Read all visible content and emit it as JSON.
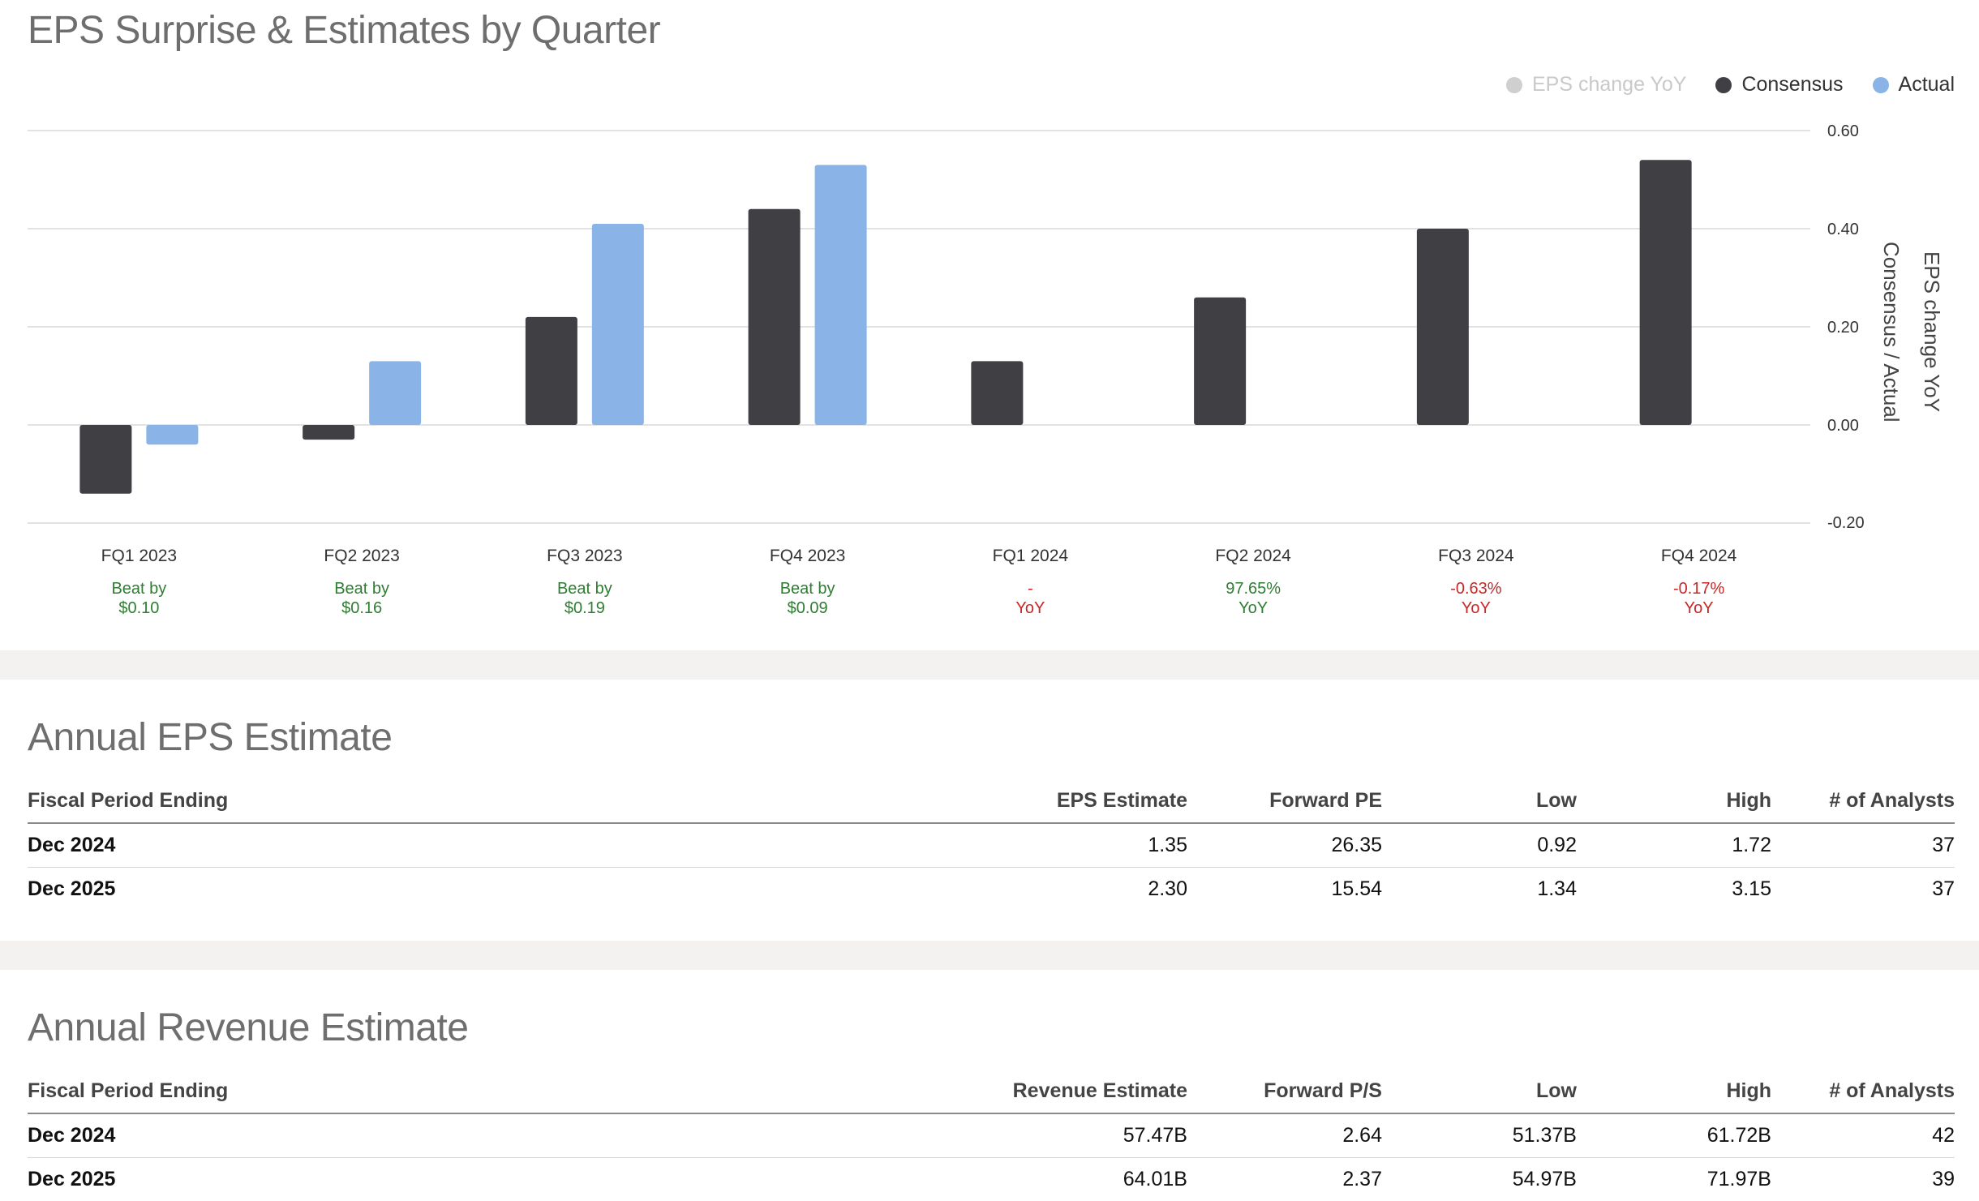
{
  "chart": {
    "title": "EPS Surprise & Estimates by Quarter",
    "legend": [
      {
        "label": "EPS change YoY",
        "color": "#cfcfcf",
        "state": "dim"
      },
      {
        "label": "Consensus",
        "color": "#3f3f44",
        "state": "on"
      },
      {
        "label": "Actual",
        "color": "#8ab4e8",
        "state": "on"
      }
    ],
    "right_axis_titles": [
      "Consensus / Actual",
      "EPS change YoY"
    ],
    "y_ticks": [
      "0.60",
      "0.40",
      "0.20",
      "0.00",
      "-0.20"
    ],
    "quarters": [
      {
        "label": "FQ1 2023",
        "note_line1": "Beat by",
        "note_line2": "$0.10",
        "note_tone": "pos"
      },
      {
        "label": "FQ2 2023",
        "note_line1": "Beat by",
        "note_line2": "$0.16",
        "note_tone": "pos"
      },
      {
        "label": "FQ3 2023",
        "note_line1": "Beat by",
        "note_line2": "$0.19",
        "note_tone": "pos"
      },
      {
        "label": "FQ4 2023",
        "note_line1": "Beat by",
        "note_line2": "$0.09",
        "note_tone": "pos"
      },
      {
        "label": "FQ1 2024",
        "note_line1": "-",
        "note_line2": "YoY",
        "note_tone": "neg"
      },
      {
        "label": "FQ2 2024",
        "note_line1": "97.65%",
        "note_line2": "YoY",
        "note_tone": "pos"
      },
      {
        "label": "FQ3 2024",
        "note_line1": "-0.63%",
        "note_line2": "YoY",
        "note_tone": "neg"
      },
      {
        "label": "FQ4 2024",
        "note_line1": "-0.17%",
        "note_line2": "YoY",
        "note_tone": "neg"
      }
    ]
  },
  "chart_data": {
    "type": "bar",
    "title": "EPS Surprise & Estimates by Quarter",
    "categories": [
      "FQ1 2023",
      "FQ2 2023",
      "FQ3 2023",
      "FQ4 2023",
      "FQ1 2024",
      "FQ2 2024",
      "FQ3 2024",
      "FQ4 2024"
    ],
    "series": [
      {
        "name": "Consensus",
        "color": "#3f3f44",
        "values": [
          -0.14,
          -0.03,
          0.22,
          0.44,
          0.13,
          0.26,
          0.4,
          0.54
        ]
      },
      {
        "name": "Actual",
        "color": "#8ab4e8",
        "values": [
          -0.04,
          0.13,
          0.41,
          0.53,
          null,
          null,
          null,
          null
        ]
      }
    ],
    "ylabel": "Consensus / Actual",
    "y2label": "EPS change YoY",
    "ylim": [
      -0.2,
      0.6
    ],
    "yticks": [
      0.6,
      0.4,
      0.2,
      0.0,
      -0.2
    ],
    "grid": true,
    "legend_position": "top-right"
  },
  "eps_table": {
    "title": "Annual EPS Estimate",
    "headers": [
      "Fiscal Period Ending",
      "EPS Estimate",
      "Forward PE",
      "Low",
      "High",
      "# of Analysts"
    ],
    "rows": [
      [
        "Dec 2024",
        "1.35",
        "26.35",
        "0.92",
        "1.72",
        "37"
      ],
      [
        "Dec 2025",
        "2.30",
        "15.54",
        "1.34",
        "3.15",
        "37"
      ]
    ]
  },
  "revenue_table": {
    "title": "Annual Revenue Estimate",
    "headers": [
      "Fiscal Period Ending",
      "Revenue Estimate",
      "Forward P/S",
      "Low",
      "High",
      "# of Analysts"
    ],
    "rows": [
      [
        "Dec 2024",
        "57.47B",
        "2.64",
        "51.37B",
        "61.72B",
        "42"
      ],
      [
        "Dec 2025",
        "64.01B",
        "2.37",
        "54.97B",
        "71.97B",
        "39"
      ]
    ]
  }
}
